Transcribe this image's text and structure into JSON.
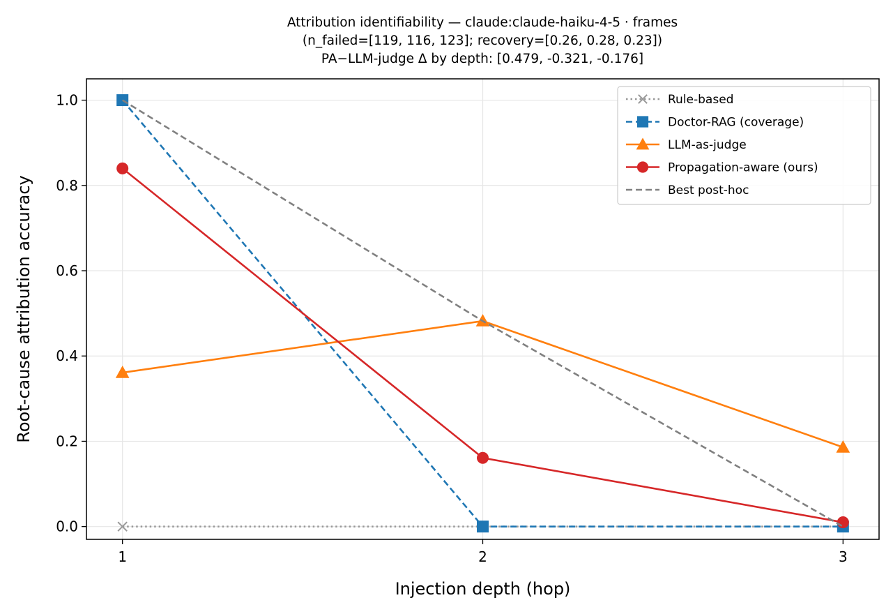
{
  "chart_data": {
    "type": "line",
    "title_lines": [
      "Attribution identifiability — claude:claude-haiku-4-5 · frames",
      "(n_failed=[119, 116, 123]; recovery=[0.26, 0.28, 0.23])",
      "PA−LLM-judge Δ by depth: [0.479, -0.321, -0.176]"
    ],
    "xlabel": "Injection depth (hop)",
    "ylabel": "Root-cause attribution accuracy",
    "x": [
      1,
      2,
      3
    ],
    "x_ticks": [
      "1",
      "2",
      "3"
    ],
    "y_ticks": [
      "0.0",
      "0.2",
      "0.4",
      "0.6",
      "0.8",
      "1.0"
    ],
    "xlim": [
      0.9,
      3.1
    ],
    "ylim": [
      -0.03,
      1.05
    ],
    "grid": true,
    "legend_position": "top-right",
    "series": [
      {
        "name": "Rule-based",
        "values": [
          0.0,
          0.0,
          0.0
        ],
        "color": "#999999",
        "line_style": "dotted",
        "marker": "x"
      },
      {
        "name": "Doctor-RAG (coverage)",
        "values": [
          1.0,
          0.0,
          0.0
        ],
        "color": "#1f77b4",
        "line_style": "dashed",
        "marker": "square"
      },
      {
        "name": "LLM-as-judge",
        "values": [
          0.361,
          0.482,
          0.186
        ],
        "color": "#ff7f0e",
        "line_style": "solid",
        "marker": "triangle"
      },
      {
        "name": "Propagation-aware (ours)",
        "values": [
          0.84,
          0.161,
          0.01
        ],
        "color": "#d62728",
        "line_style": "solid",
        "marker": "circle"
      },
      {
        "name": "Best post-hoc",
        "values": [
          1.0,
          0.482,
          0.0
        ],
        "color": "#808080",
        "line_style": "dashed",
        "marker": "none"
      }
    ]
  }
}
